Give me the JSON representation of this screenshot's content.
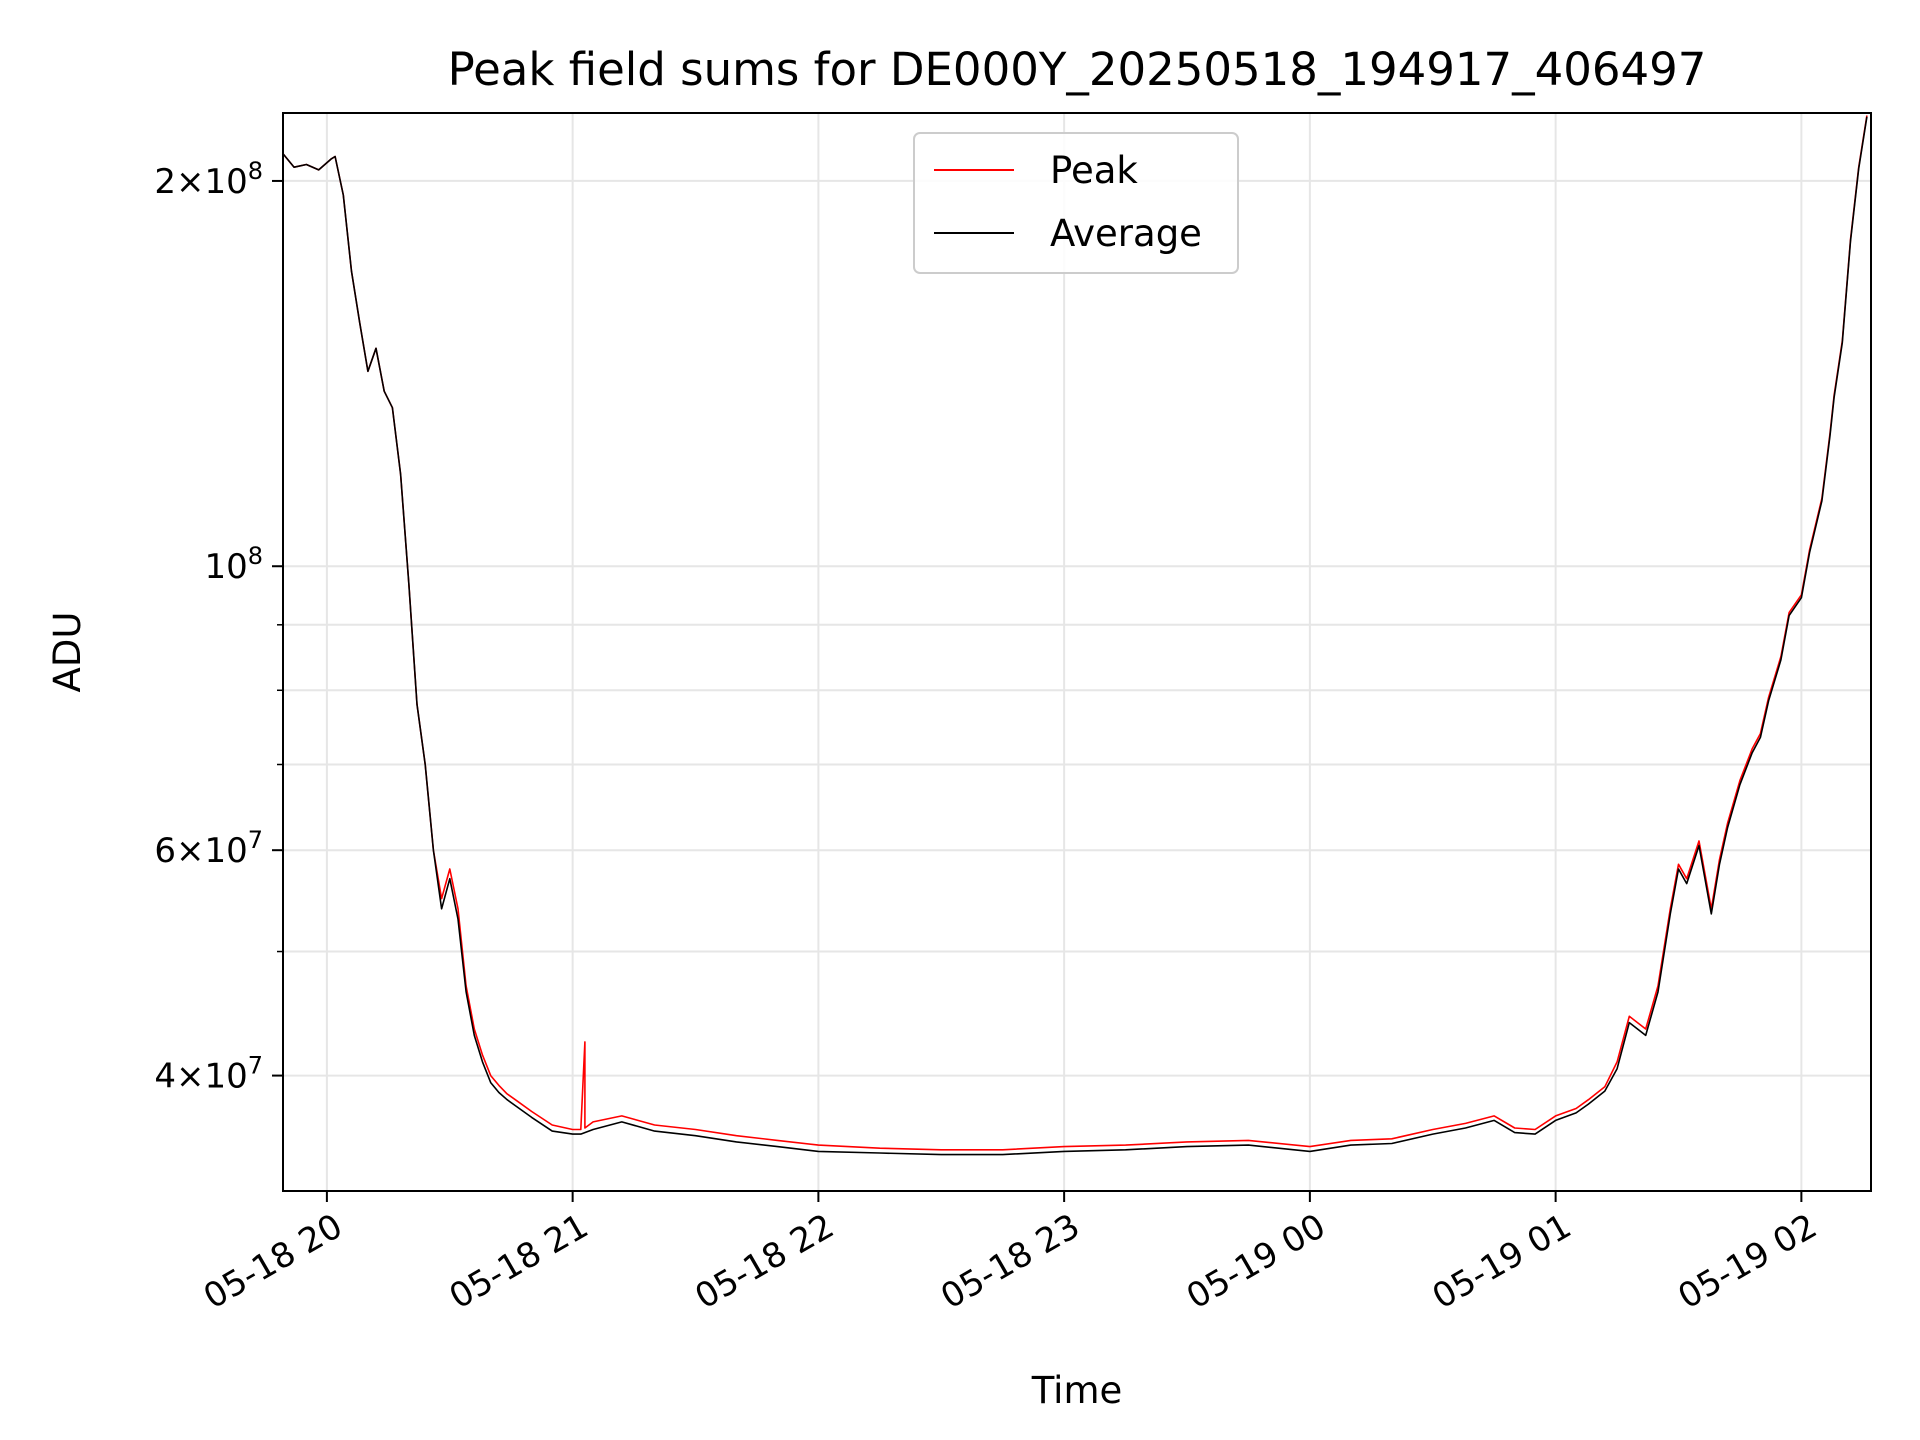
{
  "chart_data": {
    "type": "line",
    "title": "Peak field sums for DE000Y_20250518_194917_406497",
    "xlabel": "Time",
    "ylabel": "ADU",
    "y_scale": "log",
    "ylim": [
      32500000,
      226000000
    ],
    "xlim": [
      "2025-05-18 19:49:17",
      "2025-05-19 02:17:00"
    ],
    "x_ticks": [
      {
        "t": "2025-05-18 20:00",
        "label": "05-18 20"
      },
      {
        "t": "2025-05-18 21:00",
        "label": "05-18 21"
      },
      {
        "t": "2025-05-18 22:00",
        "label": "05-18 22"
      },
      {
        "t": "2025-05-18 23:00",
        "label": "05-18 23"
      },
      {
        "t": "2025-05-19 00:00",
        "label": "05-19 00"
      },
      {
        "t": "2025-05-19 01:00",
        "label": "05-19 01"
      },
      {
        "t": "2025-05-19 02:00",
        "label": "05-19 02"
      }
    ],
    "y_ticks": [
      {
        "value": 40000000,
        "base": "4",
        "exp": "7"
      },
      {
        "value": 60000000,
        "base": "6",
        "exp": "7"
      },
      {
        "value": 100000000,
        "base": "",
        "exp": "8"
      },
      {
        "value": 200000000,
        "base": "2",
        "exp": "8"
      }
    ],
    "y_minor_ticks": [
      50000000,
      70000000,
      80000000,
      90000000
    ],
    "grid": true,
    "legend_position": "top-center",
    "series": [
      {
        "name": "Peak",
        "color": "#ff0000",
        "x": [
          "2025-05-18 19:49",
          "2025-05-18 19:52",
          "2025-05-18 19:55",
          "2025-05-18 19:58",
          "2025-05-18 20:01",
          "2025-05-18 20:02",
          "2025-05-18 20:04",
          "2025-05-18 20:06",
          "2025-05-18 20:08",
          "2025-05-18 20:10",
          "2025-05-18 20:12",
          "2025-05-18 20:14",
          "2025-05-18 20:16",
          "2025-05-18 20:18",
          "2025-05-18 20:20",
          "2025-05-18 20:22",
          "2025-05-18 20:24",
          "2025-05-18 20:26",
          "2025-05-18 20:28",
          "2025-05-18 20:30",
          "2025-05-18 20:32",
          "2025-05-18 20:34",
          "2025-05-18 20:36",
          "2025-05-18 20:38",
          "2025-05-18 20:40",
          "2025-05-18 20:42",
          "2025-05-18 20:44",
          "2025-05-18 20:46",
          "2025-05-18 20:50",
          "2025-05-18 20:55",
          "2025-05-18 21:00",
          "2025-05-18 21:02",
          "2025-05-18 21:03",
          "2025-05-18 21:03",
          "2025-05-18 21:05",
          "2025-05-18 21:12",
          "2025-05-18 21:20",
          "2025-05-18 21:30",
          "2025-05-18 21:40",
          "2025-05-18 21:50",
          "2025-05-18 22:00",
          "2025-05-18 22:15",
          "2025-05-18 22:30",
          "2025-05-18 22:45",
          "2025-05-18 23:00",
          "2025-05-18 23:15",
          "2025-05-18 23:30",
          "2025-05-18 23:45",
          "2025-05-19 00:00",
          "2025-05-19 00:10",
          "2025-05-19 00:20",
          "2025-05-19 00:30",
          "2025-05-19 00:38",
          "2025-05-19 00:45",
          "2025-05-19 00:50",
          "2025-05-19 00:55",
          "2025-05-19 01:00",
          "2025-05-19 01:05",
          "2025-05-19 01:08",
          "2025-05-19 01:12",
          "2025-05-19 01:15",
          "2025-05-19 01:18",
          "2025-05-19 01:22",
          "2025-05-19 01:25",
          "2025-05-19 01:28",
          "2025-05-19 01:30",
          "2025-05-19 01:32",
          "2025-05-19 01:35",
          "2025-05-19 01:38",
          "2025-05-19 01:40",
          "2025-05-19 01:42",
          "2025-05-19 01:45",
          "2025-05-19 01:48",
          "2025-05-19 01:50",
          "2025-05-19 01:52",
          "2025-05-19 01:55",
          "2025-05-19 01:57",
          "2025-05-19 02:00",
          "2025-05-19 02:02",
          "2025-05-19 02:05",
          "2025-05-19 02:07",
          "2025-05-19 02:08",
          "2025-05-19 02:10",
          "2025-05-19 02:12",
          "2025-05-19 02:14",
          "2025-05-19 02:16"
        ],
        "values": [
          210000000,
          205000000,
          206000000,
          204000000,
          208000000,
          209000000,
          195000000,
          170000000,
          155000000,
          142000000,
          148000000,
          137000000,
          133000000,
          118000000,
          97000000,
          78000000,
          70000000,
          60000000,
          55000000,
          58000000,
          54000000,
          47000000,
          43500000,
          41500000,
          40000000,
          39300000,
          38700000,
          38300000,
          37500000,
          36600000,
          36300000,
          36300000,
          42500000,
          36400000,
          36800000,
          37200000,
          36600000,
          36300000,
          35900000,
          35600000,
          35300000,
          35100000,
          35000000,
          35000000,
          35200000,
          35300000,
          35500000,
          35600000,
          35200000,
          35600000,
          35700000,
          36300000,
          36700000,
          37200000,
          36400000,
          36300000,
          37200000,
          37700000,
          38300000,
          39200000,
          41000000,
          44500000,
          43500000,
          47000000,
          54000000,
          58500000,
          57000000,
          61000000,
          54000000,
          59000000,
          63000000,
          68000000,
          72000000,
          74000000,
          79000000,
          85000000,
          92000000,
          95000000,
          103000000,
          113000000,
          127000000,
          136000000,
          150000000,
          180000000,
          205000000,
          225000000
        ]
      },
      {
        "name": "Average",
        "color": "#000000",
        "x": [
          "2025-05-18 19:49",
          "2025-05-18 19:52",
          "2025-05-18 19:55",
          "2025-05-18 19:58",
          "2025-05-18 20:01",
          "2025-05-18 20:02",
          "2025-05-18 20:04",
          "2025-05-18 20:06",
          "2025-05-18 20:08",
          "2025-05-18 20:10",
          "2025-05-18 20:12",
          "2025-05-18 20:14",
          "2025-05-18 20:16",
          "2025-05-18 20:18",
          "2025-05-18 20:20",
          "2025-05-18 20:22",
          "2025-05-18 20:24",
          "2025-05-18 20:26",
          "2025-05-18 20:28",
          "2025-05-18 20:30",
          "2025-05-18 20:32",
          "2025-05-18 20:34",
          "2025-05-18 20:36",
          "2025-05-18 20:38",
          "2025-05-18 20:40",
          "2025-05-18 20:42",
          "2025-05-18 20:44",
          "2025-05-18 20:46",
          "2025-05-18 20:50",
          "2025-05-18 20:55",
          "2025-05-18 21:00",
          "2025-05-18 21:02",
          "2025-05-18 21:05",
          "2025-05-18 21:12",
          "2025-05-18 21:20",
          "2025-05-18 21:30",
          "2025-05-18 21:40",
          "2025-05-18 21:50",
          "2025-05-18 22:00",
          "2025-05-18 22:15",
          "2025-05-18 22:30",
          "2025-05-18 22:45",
          "2025-05-18 23:00",
          "2025-05-18 23:15",
          "2025-05-18 23:30",
          "2025-05-18 23:45",
          "2025-05-19 00:00",
          "2025-05-19 00:10",
          "2025-05-19 00:20",
          "2025-05-19 00:30",
          "2025-05-19 00:38",
          "2025-05-19 00:45",
          "2025-05-19 00:50",
          "2025-05-19 00:55",
          "2025-05-19 01:00",
          "2025-05-19 01:05",
          "2025-05-19 01:08",
          "2025-05-19 01:12",
          "2025-05-19 01:15",
          "2025-05-19 01:18",
          "2025-05-19 01:22",
          "2025-05-19 01:25",
          "2025-05-19 01:28",
          "2025-05-19 01:30",
          "2025-05-19 01:32",
          "2025-05-19 01:35",
          "2025-05-19 01:38",
          "2025-05-19 01:40",
          "2025-05-19 01:42",
          "2025-05-19 01:45",
          "2025-05-19 01:48",
          "2025-05-19 01:50",
          "2025-05-19 01:52",
          "2025-05-19 01:55",
          "2025-05-19 01:57",
          "2025-05-19 02:00",
          "2025-05-19 02:02",
          "2025-05-19 02:05",
          "2025-05-19 02:07",
          "2025-05-19 02:08",
          "2025-05-19 02:10",
          "2025-05-19 02:12",
          "2025-05-19 02:14",
          "2025-05-19 02:16"
        ],
        "values": [
          210000000,
          205000000,
          206000000,
          204000000,
          208000000,
          209000000,
          195000000,
          170000000,
          155000000,
          142000000,
          148000000,
          137000000,
          133000000,
          118000000,
          97000000,
          78000000,
          70000000,
          60000000,
          54000000,
          57000000,
          53000000,
          46500000,
          43000000,
          41000000,
          39500000,
          38800000,
          38300000,
          37900000,
          37100000,
          36200000,
          36000000,
          36000000,
          36300000,
          36800000,
          36200000,
          35900000,
          35500000,
          35200000,
          34900000,
          34800000,
          34700000,
          34700000,
          34900000,
          35000000,
          35200000,
          35300000,
          34900000,
          35300000,
          35400000,
          36000000,
          36400000,
          36900000,
          36100000,
          36000000,
          36900000,
          37400000,
          38000000,
          38900000,
          40500000,
          44000000,
          43000000,
          46500000,
          53500000,
          58000000,
          56500000,
          60500000,
          53500000,
          58500000,
          62500000,
          67500000,
          71500000,
          73500000,
          78500000,
          84500000,
          91500000,
          94500000,
          102500000,
          112500000,
          126500000,
          135500000,
          149500000,
          179500000,
          204500000,
          224500000
        ]
      }
    ]
  }
}
